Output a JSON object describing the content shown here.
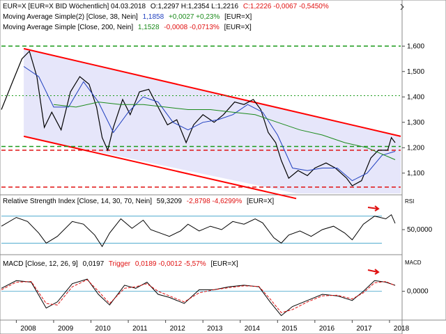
{
  "header": {
    "line1": {
      "symbol": "EUR=X [EUR=X BID Wöchentlich] 04.03.2018",
      "ohl": "O:1,2297 H:1,2354 L:1,2216",
      "close": "C:1,2226 -0,0067 -0,5450%"
    },
    "line2": {
      "label": "Moving Average Simple(2) [Close, 38, Nein]",
      "value": "1,1858",
      "change": "+0,0027 +0,23%",
      "suffix": "[EUR=X]"
    },
    "line3": {
      "label": "Moving Average Simple [Close, 200, Nein]",
      "value": "1,1528",
      "change": "-0,0008 -0,0713%",
      "suffix": "[EUR=X]"
    }
  },
  "rsi_header": {
    "label": "Relative Strength Index [Close, 14, 30, 70, Nein]",
    "value": "59,3209",
    "change": "-2,8798 -4,6299%",
    "suffix": "[EUR=X]"
  },
  "macd_header": {
    "label": "MACD [Close, 12, 26, 9]",
    "value": "0,0197",
    "trigger_label": "Trigger",
    "trigger_value": "0,0189 -0,0012 -5,57%",
    "suffix": "[EUR=X]"
  },
  "panel_labels": {
    "rsi": "RSI",
    "macd": "MACD"
  },
  "colors": {
    "price": "#000000",
    "ma38": "#1f3fbf",
    "ma200": "#1a8a1a",
    "channel_line": "#ff0000",
    "channel_fill": "#e6e6fa",
    "support_green": "#1a9a1a",
    "support_red": "#e01010",
    "trigger": "#e01010",
    "level_line": "#3aa0c8"
  },
  "chart_data": [
    {
      "type": "line",
      "panel": "price",
      "xlabel": "",
      "x_ticks": [
        "2008",
        "2009",
        "2010",
        "2011",
        "2012",
        "2013",
        "2014",
        "2015",
        "2016",
        "2017",
        "2018"
      ],
      "xlim": [
        2007.6,
        2018.3
      ],
      "ylim": [
        1.02,
        1.65
      ],
      "y_ticks": [
        "1,100",
        "1,200",
        "1,300",
        "1,400",
        "1,500",
        "1,600"
      ],
      "y_tick_values": [
        1.1,
        1.2,
        1.3,
        1.4,
        1.5,
        1.6
      ],
      "series": [
        {
          "name": "EUR=X",
          "x": [
            2007.6,
            2007.9,
            2008.15,
            2008.35,
            2008.55,
            2008.75,
            2008.95,
            2009.2,
            2009.45,
            2009.7,
            2009.95,
            2010.15,
            2010.3,
            2010.45,
            2010.6,
            2010.85,
            2011.05,
            2011.3,
            2011.55,
            2011.8,
            2012.05,
            2012.3,
            2012.55,
            2012.75,
            2013.0,
            2013.3,
            2013.55,
            2013.85,
            2014.1,
            2014.35,
            2014.55,
            2014.75,
            2014.95,
            2015.1,
            2015.3,
            2015.55,
            2015.8,
            2016.0,
            2016.3,
            2016.55,
            2016.85,
            2017.0,
            2017.25,
            2017.5,
            2017.7,
            2017.95,
            2018.05,
            2018.15
          ],
          "values": [
            1.35,
            1.46,
            1.55,
            1.58,
            1.48,
            1.28,
            1.34,
            1.27,
            1.42,
            1.48,
            1.45,
            1.36,
            1.24,
            1.19,
            1.28,
            1.39,
            1.33,
            1.42,
            1.43,
            1.36,
            1.29,
            1.31,
            1.22,
            1.29,
            1.33,
            1.3,
            1.33,
            1.38,
            1.37,
            1.39,
            1.35,
            1.26,
            1.22,
            1.15,
            1.08,
            1.11,
            1.09,
            1.12,
            1.14,
            1.12,
            1.08,
            1.05,
            1.07,
            1.16,
            1.19,
            1.19,
            1.24,
            1.22
          ]
        },
        {
          "name": "MA 38",
          "x": [
            2008.2,
            2008.6,
            2009.0,
            2009.4,
            2009.8,
            2010.2,
            2010.6,
            2011.0,
            2011.4,
            2011.8,
            2012.2,
            2012.6,
            2013.0,
            2013.4,
            2013.8,
            2014.2,
            2014.6,
            2015.0,
            2015.4,
            2015.8,
            2016.2,
            2016.6,
            2017.0,
            2017.4,
            2017.8,
            2018.15
          ],
          "values": [
            1.52,
            1.48,
            1.36,
            1.36,
            1.46,
            1.38,
            1.26,
            1.34,
            1.4,
            1.38,
            1.3,
            1.27,
            1.3,
            1.31,
            1.33,
            1.37,
            1.34,
            1.25,
            1.12,
            1.11,
            1.12,
            1.12,
            1.07,
            1.1,
            1.17,
            1.1858
          ]
        },
        {
          "name": "MA 200",
          "x": [
            2009.0,
            2009.6,
            2010.2,
            2010.8,
            2011.4,
            2012.0,
            2012.6,
            2013.2,
            2013.8,
            2014.4,
            2015.0,
            2015.6,
            2016.2,
            2016.8,
            2017.4,
            2018.15
          ],
          "values": [
            1.37,
            1.36,
            1.38,
            1.37,
            1.37,
            1.36,
            1.35,
            1.35,
            1.34,
            1.33,
            1.3,
            1.27,
            1.25,
            1.22,
            1.2,
            1.1528
          ]
        }
      ],
      "annotations": {
        "channel_upper": {
          "x": [
            2008.2,
            2018.3
          ],
          "values": [
            1.59,
            1.245
          ]
        },
        "channel_lower": {
          "x": [
            2008.2,
            2015.5
          ],
          "values": [
            1.245,
            1.0
          ]
        },
        "green_support_levels": [
          1.6,
          1.405,
          1.205
        ],
        "red_support_levels": [
          1.19,
          1.045
        ]
      }
    },
    {
      "type": "line",
      "panel": "rsi",
      "ylim": [
        15,
        85
      ],
      "y_ticks": [
        "50,0000"
      ],
      "y_tick_values": [
        50
      ],
      "levels": [
        30,
        70
      ],
      "series": [
        {
          "name": "RSI",
          "x": [
            2007.6,
            2008.0,
            2008.3,
            2008.6,
            2008.8,
            2009.1,
            2009.5,
            2009.8,
            2010.1,
            2010.3,
            2010.5,
            2010.8,
            2011.1,
            2011.4,
            2011.6,
            2011.9,
            2012.1,
            2012.4,
            2012.6,
            2012.9,
            2013.2,
            2013.5,
            2013.8,
            2014.1,
            2014.4,
            2014.6,
            2014.9,
            2015.1,
            2015.3,
            2015.6,
            2015.9,
            2016.2,
            2016.5,
            2016.8,
            2017.0,
            2017.3,
            2017.6,
            2017.9,
            2018.05,
            2018.15
          ],
          "values": [
            55,
            68,
            62,
            45,
            30,
            40,
            62,
            58,
            42,
            25,
            45,
            66,
            52,
            64,
            50,
            44,
            40,
            48,
            58,
            48,
            55,
            50,
            62,
            58,
            66,
            60,
            38,
            30,
            42,
            48,
            40,
            50,
            55,
            45,
            35,
            58,
            70,
            66,
            72,
            59.3209
          ]
        }
      ]
    },
    {
      "type": "line",
      "panel": "macd",
      "ylim": [
        -0.09,
        0.07
      ],
      "y_ticks": [
        "0,0000"
      ],
      "y_tick_values": [
        0
      ],
      "series": [
        {
          "name": "MACD",
          "x": [
            2007.6,
            2008.0,
            2008.4,
            2008.8,
            2009.1,
            2009.5,
            2009.9,
            2010.2,
            2010.5,
            2010.9,
            2011.2,
            2011.5,
            2011.8,
            2012.1,
            2012.5,
            2012.9,
            2013.3,
            2013.7,
            2014.1,
            2014.5,
            2014.8,
            2015.1,
            2015.4,
            2015.8,
            2016.2,
            2016.6,
            2017.0,
            2017.3,
            2017.6,
            2017.9,
            2018.15
          ],
          "values": [
            0.01,
            0.035,
            0.03,
            -0.055,
            -0.035,
            0.025,
            0.04,
            -0.01,
            -0.045,
            0.02,
            0.01,
            0.03,
            -0.01,
            -0.02,
            -0.04,
            0.005,
            0.005,
            0.015,
            0.02,
            0.015,
            -0.035,
            -0.08,
            -0.05,
            -0.03,
            -0.01,
            -0.015,
            -0.03,
            0.0,
            0.035,
            0.03,
            0.0197
          ]
        },
        {
          "name": "Trigger",
          "x": [
            2007.6,
            2008.0,
            2008.4,
            2008.8,
            2009.1,
            2009.5,
            2009.9,
            2010.2,
            2010.5,
            2010.9,
            2011.2,
            2011.5,
            2011.8,
            2012.1,
            2012.5,
            2012.9,
            2013.3,
            2013.7,
            2014.1,
            2014.5,
            2014.8,
            2015.1,
            2015.4,
            2015.8,
            2016.2,
            2016.6,
            2017.0,
            2017.3,
            2017.6,
            2017.9,
            2018.15
          ],
          "values": [
            0.005,
            0.03,
            0.032,
            -0.04,
            -0.045,
            0.015,
            0.038,
            0.0,
            -0.04,
            0.01,
            0.015,
            0.025,
            0.0,
            -0.015,
            -0.035,
            -0.005,
            0.005,
            0.012,
            0.018,
            0.016,
            -0.025,
            -0.07,
            -0.06,
            -0.035,
            -0.015,
            -0.013,
            -0.025,
            -0.005,
            0.028,
            0.032,
            0.0189
          ]
        }
      ]
    }
  ]
}
